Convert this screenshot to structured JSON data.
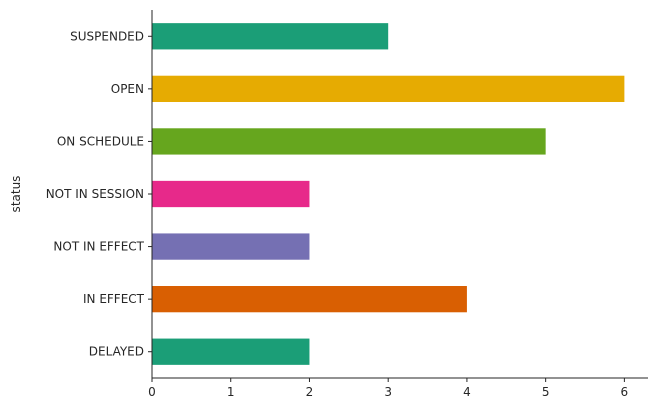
{
  "chart_data": {
    "type": "bar",
    "orientation": "horizontal",
    "ylabel": "status",
    "xlabel": "",
    "categories": [
      "SUSPENDED",
      "OPEN",
      "ON SCHEDULE",
      "NOT IN SESSION",
      "NOT IN EFFECT",
      "IN EFFECT",
      "DELAYED"
    ],
    "values": [
      3,
      6,
      5,
      2,
      2,
      4,
      2
    ],
    "colors": [
      "#1b9e77",
      "#e6ab02",
      "#66a61e",
      "#e7298a",
      "#7570b3",
      "#d95f02",
      "#1b9e77"
    ],
    "xlim": [
      0,
      6.3
    ],
    "xticks": [
      0,
      1,
      2,
      3,
      4,
      5,
      6
    ],
    "grid": false,
    "legend": "none"
  }
}
